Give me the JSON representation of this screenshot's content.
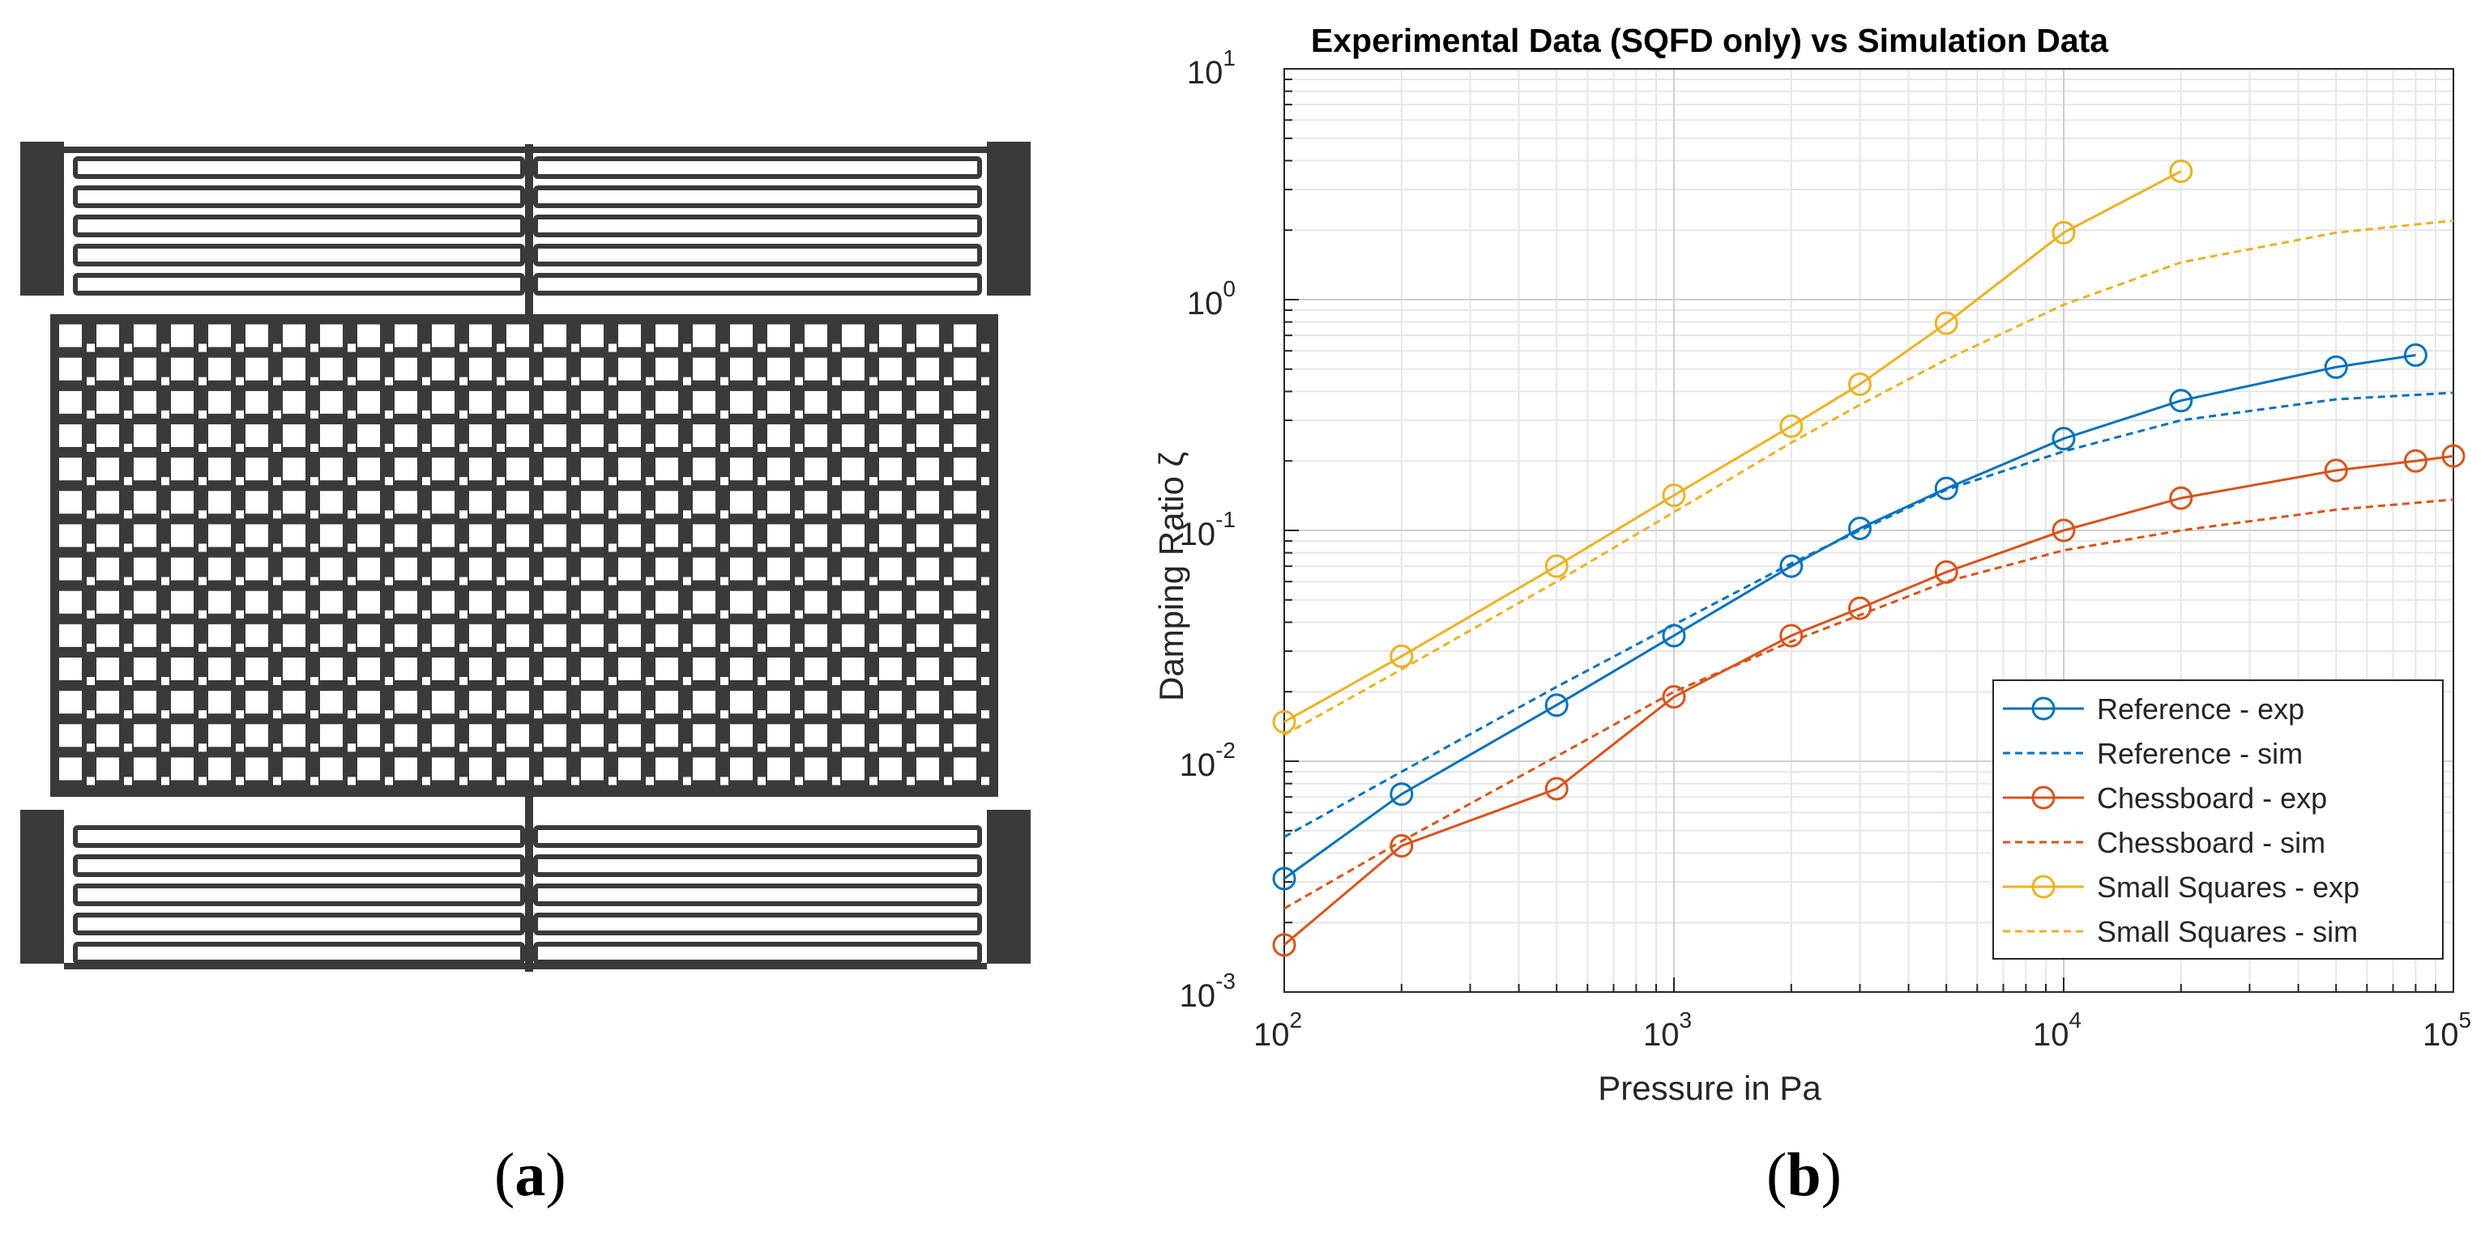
{
  "panel_labels": {
    "a": {
      "open": "(",
      "letter": "a",
      "close": ")"
    },
    "b": {
      "open": "(",
      "letter": "b",
      "close": ")"
    }
  },
  "figure_a": {
    "description_name": "MEMS perforated plate",
    "plate_grid": {
      "rows": 14,
      "cols": 25
    },
    "spring_beams_per_side": 5,
    "colors": {
      "structure": "#3a3a3a",
      "background": "#ffffff"
    }
  },
  "chart_data": {
    "type": "line",
    "title": "Experimental Data (SQFD only) vs Simulation Data",
    "xlabel": "Pressure in Pa",
    "ylabel": "Damping Ratio ζ",
    "xscale": "log",
    "yscale": "log",
    "xlim": [
      100,
      100000
    ],
    "ylim": [
      0.001,
      10
    ],
    "x_ticks": [
      {
        "value": 100,
        "base": "10",
        "exp": "2"
      },
      {
        "value": 1000,
        "base": "10",
        "exp": "3"
      },
      {
        "value": 10000,
        "base": "10",
        "exp": "4"
      },
      {
        "value": 100000,
        "base": "10",
        "exp": "5"
      }
    ],
    "y_ticks": [
      {
        "value": 0.001,
        "base": "10",
        "exp": "-3"
      },
      {
        "value": 0.01,
        "base": "10",
        "exp": "-2"
      },
      {
        "value": 0.1,
        "base": "10",
        "exp": "-1"
      },
      {
        "value": 1,
        "base": "10",
        "exp": "0"
      },
      {
        "value": 10,
        "base": "10",
        "exp": "1"
      }
    ],
    "grid": true,
    "legend_position": "bottom-right",
    "series": [
      {
        "name": "Reference - exp",
        "color": "#0072BD",
        "style": "solid",
        "marker": "circle",
        "x": [
          100,
          200,
          500,
          1000,
          2000,
          3000,
          5000,
          10000,
          20000,
          50000,
          80000
        ],
        "y": [
          0.0031,
          0.0072,
          0.0175,
          0.035,
          0.07,
          0.102,
          0.152,
          0.25,
          0.365,
          0.51,
          0.575
        ]
      },
      {
        "name": "Reference - sim",
        "color": "#0072BD",
        "style": "dashed",
        "marker": "none",
        "x": [
          100,
          200,
          500,
          1000,
          2000,
          3000,
          5000,
          10000,
          20000,
          50000,
          100000
        ],
        "y": [
          0.0047,
          0.009,
          0.021,
          0.039,
          0.072,
          0.1,
          0.15,
          0.22,
          0.3,
          0.37,
          0.395
        ]
      },
      {
        "name": "Chessboard - exp",
        "color": "#D95319",
        "style": "solid",
        "marker": "circle",
        "x": [
          100,
          200,
          500,
          1000,
          2000,
          3000,
          5000,
          10000,
          20000,
          50000,
          80000,
          100000
        ],
        "y": [
          0.0016,
          0.0043,
          0.0076,
          0.019,
          0.035,
          0.046,
          0.066,
          0.1,
          0.138,
          0.182,
          0.2,
          0.21
        ]
      },
      {
        "name": "Chessboard - sim",
        "color": "#D95319",
        "style": "dashed",
        "marker": "none",
        "x": [
          100,
          200,
          500,
          1000,
          2000,
          3000,
          5000,
          10000,
          20000,
          50000,
          100000
        ],
        "y": [
          0.0023,
          0.0045,
          0.0105,
          0.02,
          0.033,
          0.043,
          0.06,
          0.082,
          0.1,
          0.123,
          0.136
        ]
      },
      {
        "name": "Small Squares - exp",
        "color": "#EDB120",
        "style": "solid",
        "marker": "circle",
        "x": [
          100,
          200,
          500,
          1000,
          2000,
          3000,
          5000,
          10000,
          20000
        ],
        "y": [
          0.0148,
          0.0285,
          0.07,
          0.142,
          0.283,
          0.43,
          0.79,
          1.95,
          3.6
        ]
      },
      {
        "name": "Small Squares - sim",
        "color": "#EDB120",
        "style": "dashed",
        "marker": "none",
        "x": [
          100,
          200,
          500,
          1000,
          2000,
          3000,
          5000,
          10000,
          20000,
          50000,
          100000
        ],
        "y": [
          0.013,
          0.025,
          0.06,
          0.12,
          0.24,
          0.35,
          0.55,
          0.95,
          1.45,
          1.95,
          2.2
        ]
      }
    ]
  }
}
